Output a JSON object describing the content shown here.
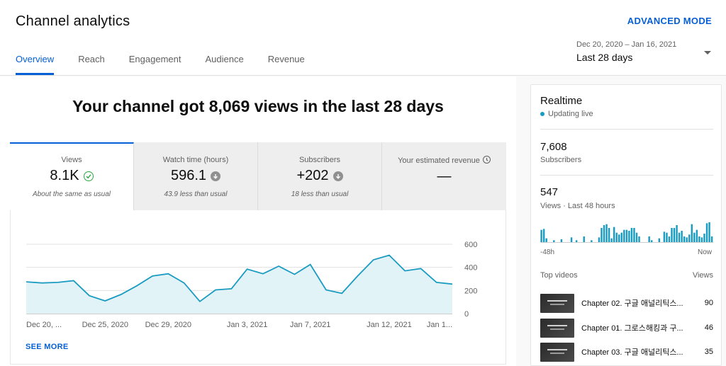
{
  "header": {
    "title": "Channel analytics",
    "advanced_mode": "ADVANCED MODE",
    "tabs": [
      {
        "label": "Overview",
        "active": true
      },
      {
        "label": "Reach",
        "active": false
      },
      {
        "label": "Engagement",
        "active": false
      },
      {
        "label": "Audience",
        "active": false
      },
      {
        "label": "Revenue",
        "active": false
      }
    ],
    "date_range": {
      "dates": "Dec 20, 2020 – Jan 16, 2021",
      "label": "Last 28 days"
    }
  },
  "main": {
    "headline": "Your channel got 8,069 views in the last 28 days",
    "metrics": [
      {
        "label": "Views",
        "value": "8.1K",
        "note": "About the same as usual",
        "icon": "check-circle-icon"
      },
      {
        "label": "Watch time (hours)",
        "value": "596.1",
        "note": "43.9 less than usual",
        "icon": "arrow-down-circle-icon"
      },
      {
        "label": "Subscribers",
        "value": "+202",
        "note": "18 less than usual",
        "icon": "arrow-down-circle-icon"
      },
      {
        "label": "Your estimated revenue",
        "value": "—",
        "note": "",
        "icon": "info-icon"
      }
    ],
    "see_more": "SEE MORE"
  },
  "chart_data": {
    "type": "area",
    "x_tick_labels": [
      "Dec 20, ...",
      "Dec 25, 2020",
      "Dec 29, 2020",
      "Jan 3, 2021",
      "Jan 7, 2021",
      "Jan 12, 2021",
      "Jan 1..."
    ],
    "y_tick_labels": [
      "600",
      "400",
      "200",
      "0"
    ],
    "ylim": [
      0,
      600
    ],
    "values": [
      275,
      265,
      270,
      285,
      155,
      110,
      165,
      240,
      325,
      345,
      265,
      105,
      205,
      215,
      385,
      345,
      410,
      340,
      425,
      205,
      175,
      325,
      465,
      505,
      370,
      390,
      270,
      255
    ],
    "color": "#1a9bc1",
    "fill_color": "#e2f3f8",
    "grid": true
  },
  "realtime": {
    "title": "Realtime",
    "status": "Updating live",
    "subscribers_value": "7,608",
    "subscribers_label": "Subscribers",
    "views_value": "547",
    "views_label": "Views · Last 48 hours",
    "spark_start": "-48h",
    "spark_end": "Now",
    "hourly_views": [
      13,
      14,
      4,
      0,
      0,
      2,
      0,
      0,
      3,
      0,
      0,
      0,
      5,
      0,
      2,
      0,
      0,
      6,
      0,
      0,
      2,
      0,
      0,
      5,
      15,
      18,
      19,
      15,
      4,
      16,
      10,
      8,
      10,
      13,
      13,
      12,
      15,
      15,
      10,
      6,
      0,
      0,
      0,
      6,
      2,
      0,
      0,
      4,
      0,
      11,
      10,
      6,
      15,
      15,
      18,
      10,
      12,
      6,
      5,
      8,
      19,
      10,
      13,
      6,
      5,
      9,
      20,
      21,
      6
    ],
    "spark_color": "#1a9bc1",
    "top_videos_label": "Top videos",
    "views_col_label": "Views",
    "videos": [
      {
        "title": "Chapter 02. 구글 애널리틱스...",
        "views": "90"
      },
      {
        "title": "Chapter 01. 그로스해킹과 구...",
        "views": "46"
      },
      {
        "title": "Chapter 03. 구글 애널리틱스...",
        "views": "35"
      }
    ]
  }
}
